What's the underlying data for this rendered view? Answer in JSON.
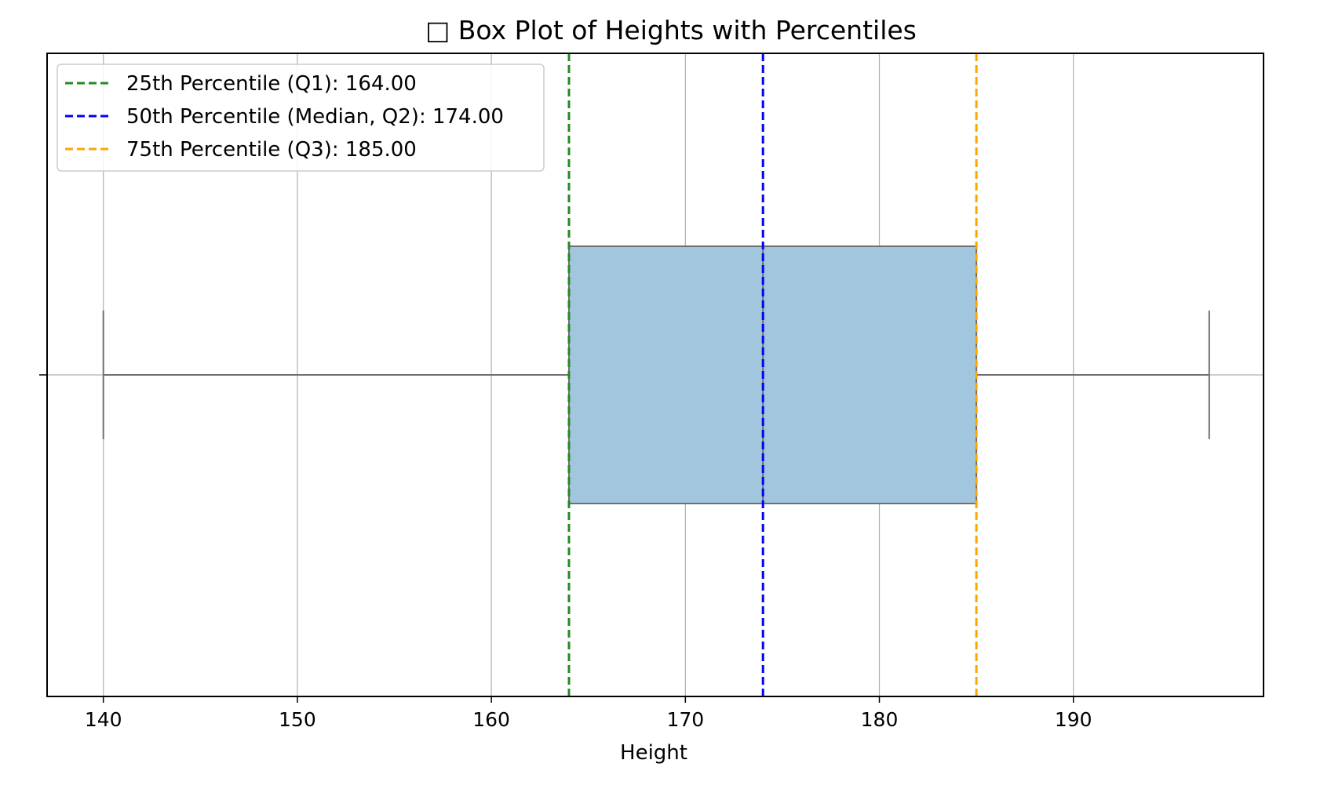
{
  "chart_data": {
    "type": "box",
    "title": "□ Box Plot of Heights with Percentiles",
    "xlabel": "Height",
    "ylabel": "",
    "xlim": [
      137.1,
      199.8
    ],
    "xticks": [
      140,
      150,
      160,
      170,
      180,
      190
    ],
    "grid": true,
    "legend_position": "top-left",
    "box": {
      "whisker_low": 140,
      "q1": 164,
      "median": 174,
      "q3": 185,
      "whisker_high": 197,
      "fill_color": "#a1c6dd",
      "line_color": "#707070"
    },
    "reference_lines": [
      {
        "label": "25th Percentile (Q1): 164.00",
        "value": 164,
        "color": "#228b22"
      },
      {
        "label": "50th Percentile (Median, Q2): 174.00",
        "value": 174,
        "color": "#0000ff"
      },
      {
        "label": "75th Percentile (Q3): 185.00",
        "value": 185,
        "color": "#ffa500"
      }
    ]
  }
}
